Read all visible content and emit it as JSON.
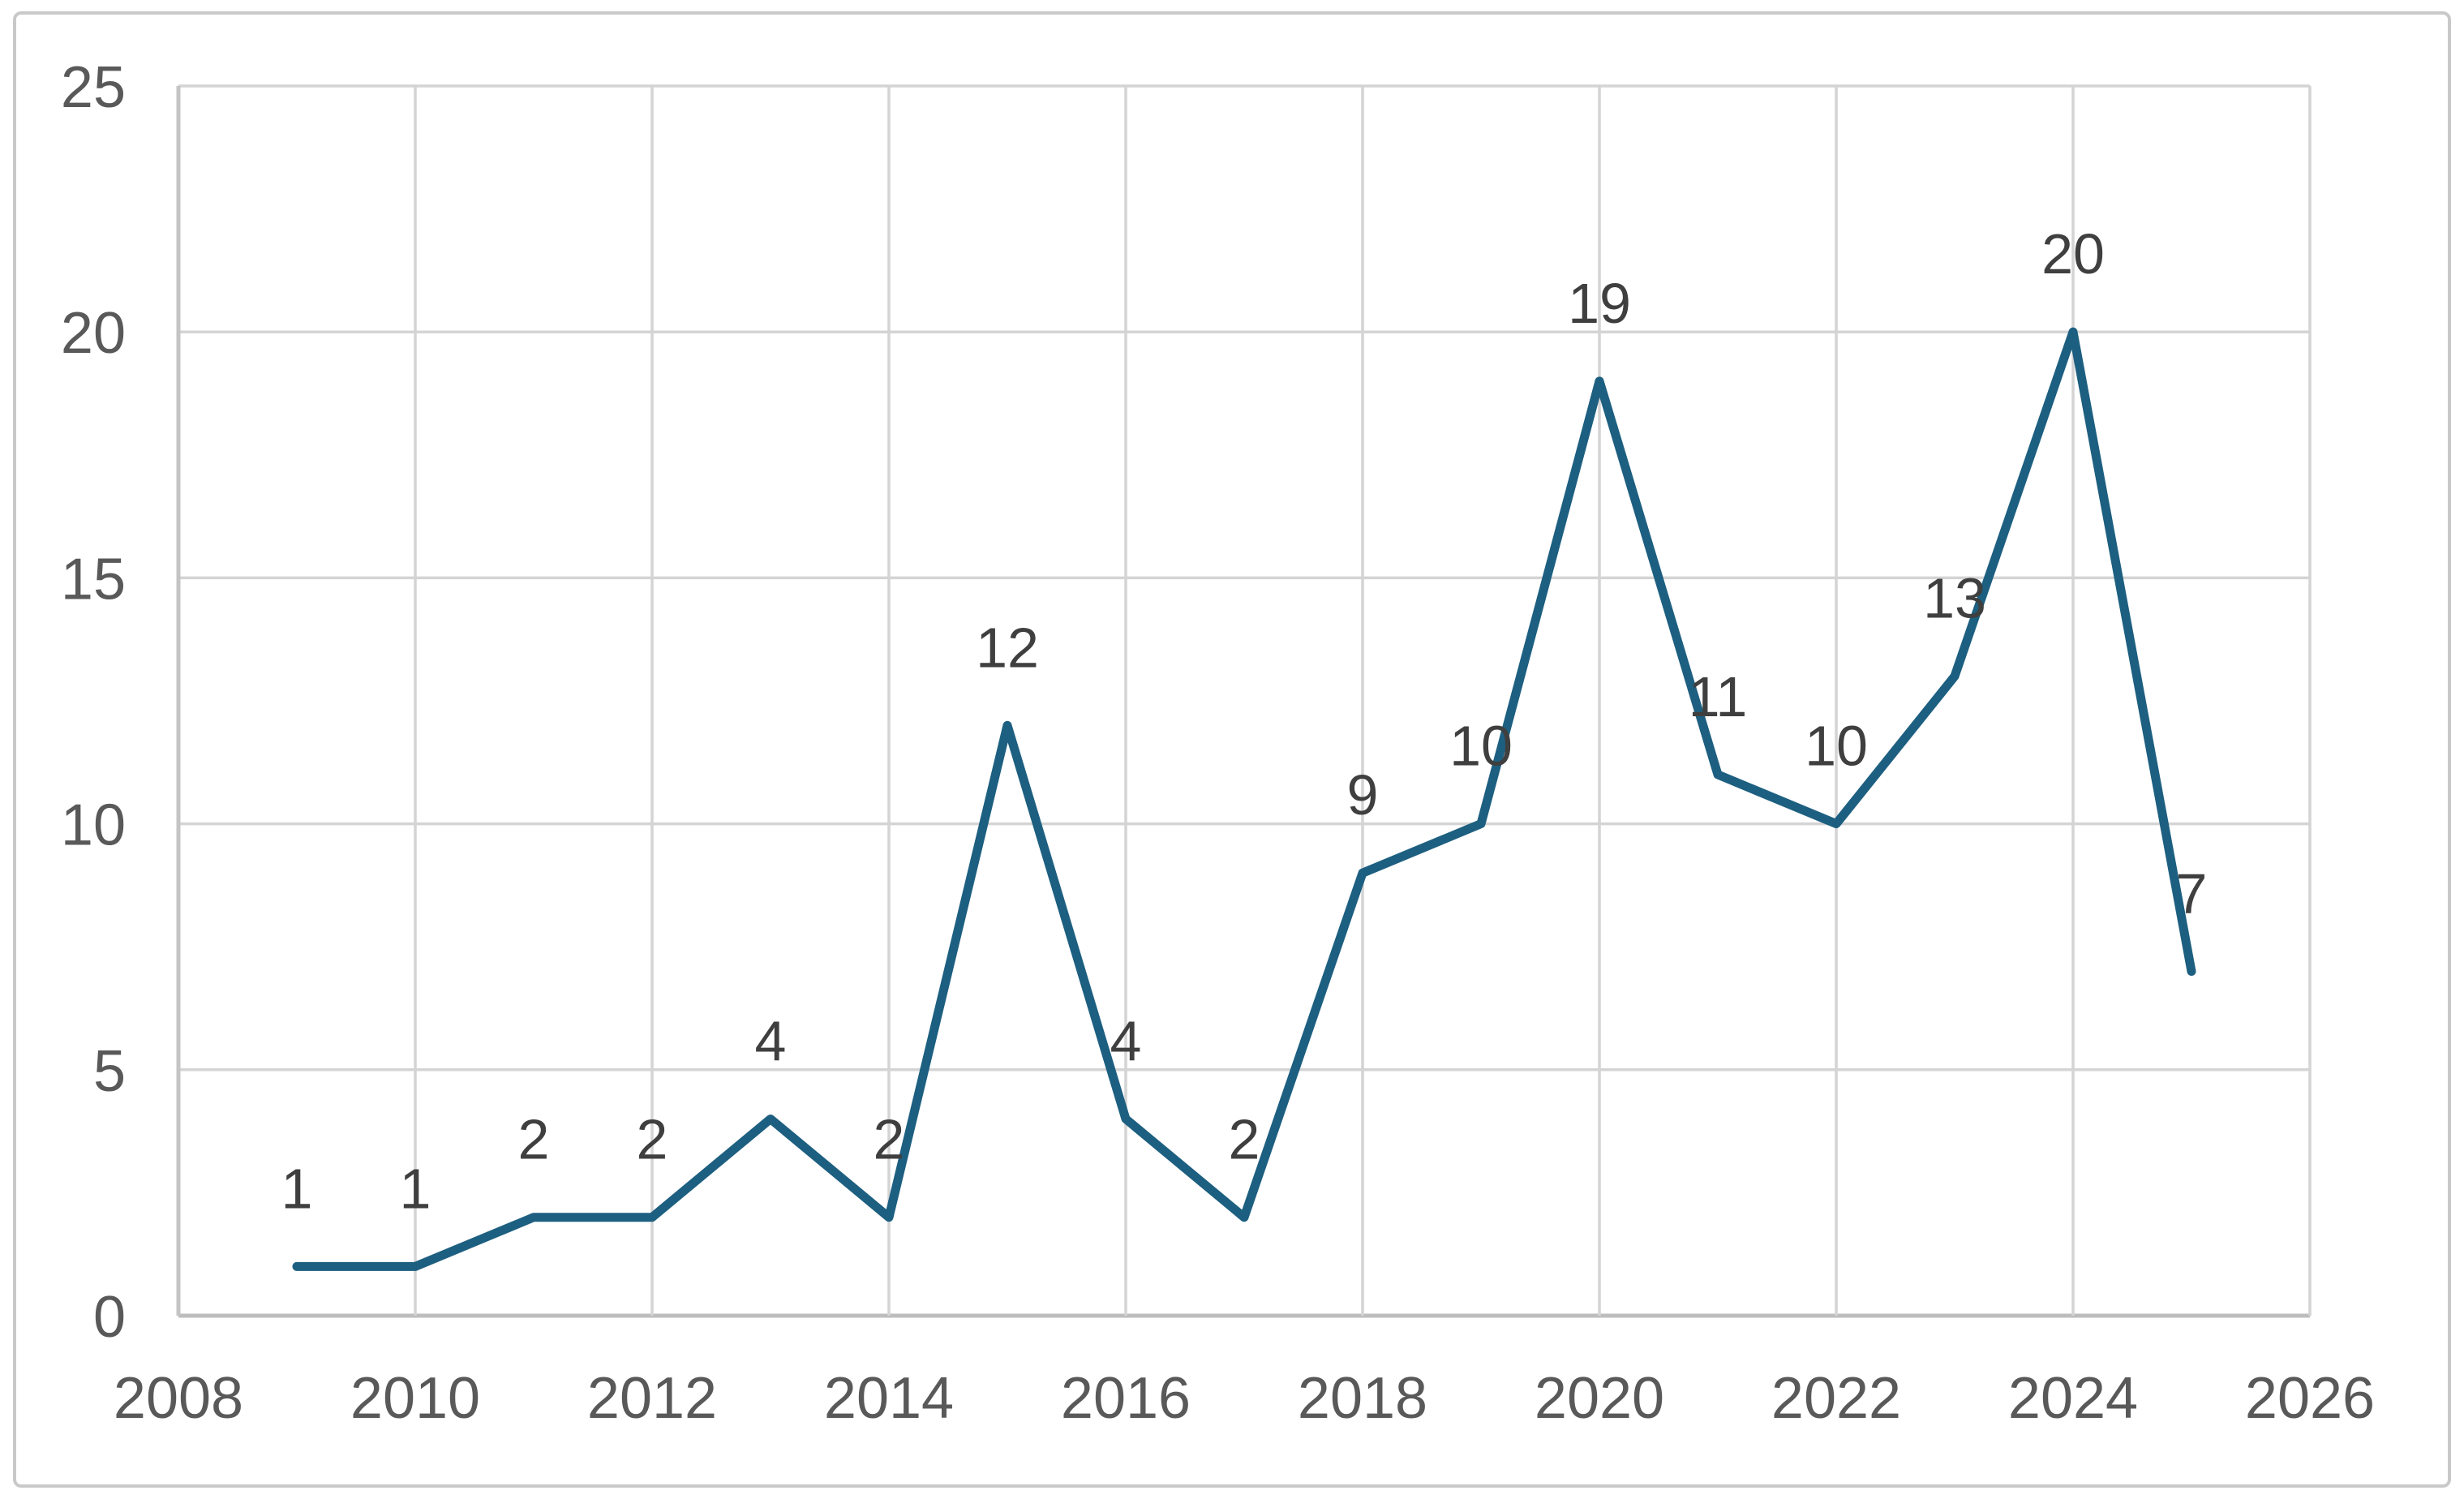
{
  "chart_data": {
    "type": "line",
    "title": "",
    "xlabel": "",
    "ylabel": "",
    "x": [
      2009,
      2010,
      2011,
      2012,
      2013,
      2014,
      2015,
      2016,
      2017,
      2018,
      2019,
      2020,
      2021,
      2022,
      2023,
      2024,
      2025
    ],
    "series": [
      {
        "name": "",
        "values": [
          1,
          1,
          2,
          2,
          4,
          2,
          12,
          4,
          2,
          9,
          10,
          19,
          11,
          10,
          13,
          20,
          7
        ]
      }
    ],
    "show_data_labels": true,
    "data_label_position": "above",
    "x_tick_labels": [
      "2008",
      "2010",
      "2012",
      "2014",
      "2016",
      "2018",
      "2020",
      "2022",
      "2024",
      "2026"
    ],
    "x_tick_values": [
      2008,
      2010,
      2012,
      2014,
      2016,
      2018,
      2020,
      2022,
      2024,
      2026
    ],
    "y_tick_labels": [
      "0",
      "5",
      "10",
      "15",
      "20",
      "25"
    ],
    "y_tick_values": [
      0,
      5,
      10,
      15,
      20,
      25
    ],
    "xlim": [
      2008,
      2026
    ],
    "ylim": [
      0,
      25
    ],
    "grid": true,
    "legend_position": "none",
    "colors": {
      "line": "#1d5f80",
      "data_label_text": "#3f3f3f",
      "tick_label_text": "#595959",
      "gridline": "#d4d4d4",
      "axis_line": "#bdbdbd",
      "plot_background": "#ffffff",
      "figure_border": "#c9c9c9"
    }
  }
}
